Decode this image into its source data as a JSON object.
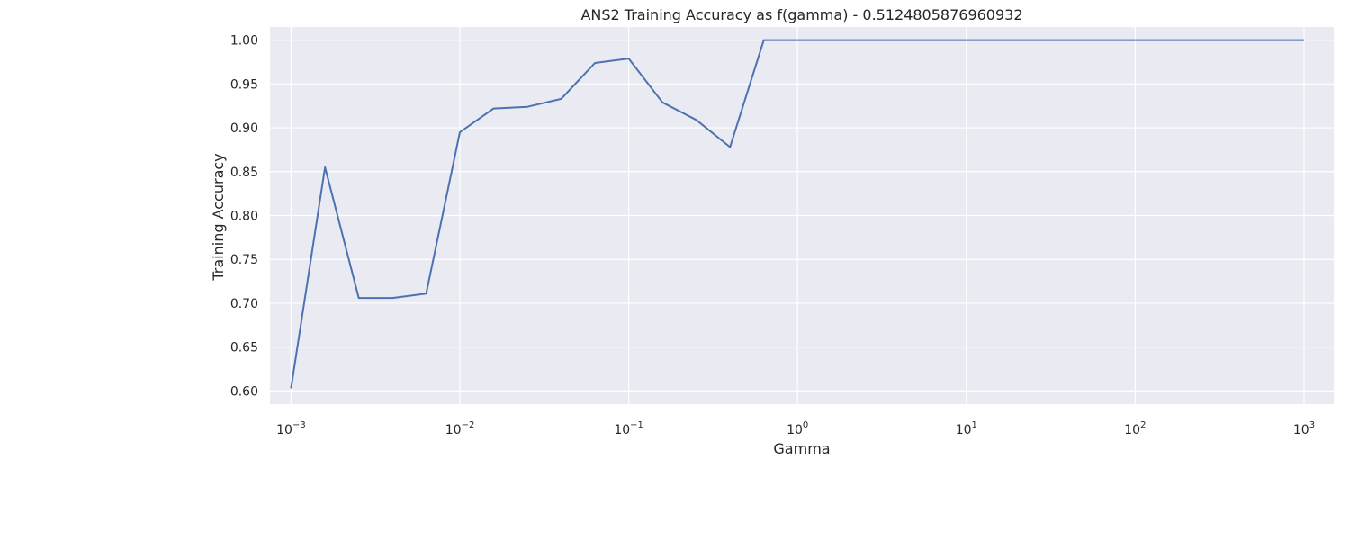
{
  "chart_data": {
    "type": "line",
    "title": "ANS2 Training Accuracy as f(gamma) - 0.5124805876960932",
    "xlabel": "Gamma",
    "ylabel": "Training Accuracy",
    "xscale": "log",
    "xlim": [
      0.00075,
      1500
    ],
    "ylim": [
      0.585,
      1.015
    ],
    "grid": true,
    "background_color": "#eaeaf2",
    "grid_color": "#ffffff",
    "x_ticks": [
      {
        "value": 0.001,
        "base": "10",
        "exp": "−3"
      },
      {
        "value": 0.01,
        "base": "10",
        "exp": "−2"
      },
      {
        "value": 0.1,
        "base": "10",
        "exp": "−1"
      },
      {
        "value": 1,
        "base": "10",
        "exp": "0"
      },
      {
        "value": 10,
        "base": "10",
        "exp": "1"
      },
      {
        "value": 100,
        "base": "10",
        "exp": "2"
      },
      {
        "value": 1000,
        "base": "10",
        "exp": "3"
      }
    ],
    "y_ticks": [
      {
        "value": 0.6,
        "label": "0.60"
      },
      {
        "value": 0.65,
        "label": "0.65"
      },
      {
        "value": 0.7,
        "label": "0.70"
      },
      {
        "value": 0.75,
        "label": "0.75"
      },
      {
        "value": 0.8,
        "label": "0.80"
      },
      {
        "value": 0.85,
        "label": "0.85"
      },
      {
        "value": 0.9,
        "label": "0.90"
      },
      {
        "value": 0.95,
        "label": "0.95"
      },
      {
        "value": 1.0,
        "label": "1.00"
      }
    ],
    "series": [
      {
        "color": "#4c72b0",
        "x": [
          0.001,
          0.00159,
          0.00252,
          0.00399,
          0.00632,
          0.01,
          0.01585,
          0.02512,
          0.03981,
          0.0631,
          0.1,
          0.1585,
          0.2512,
          0.3981,
          0.631,
          1,
          1.585,
          2.512,
          3.981,
          6.31,
          10,
          15.85,
          25.12,
          39.81,
          63.1,
          100,
          158.5,
          251.2,
          398.1,
          631,
          1000
        ],
        "y": [
          0.603,
          0.855,
          0.706,
          0.706,
          0.711,
          0.895,
          0.922,
          0.924,
          0.933,
          0.974,
          0.979,
          0.929,
          0.909,
          0.878,
          1.0,
          1.0,
          1.0,
          1.0,
          1.0,
          1.0,
          1.0,
          1.0,
          1.0,
          1.0,
          1.0,
          1.0,
          1.0,
          1.0,
          1.0,
          1.0,
          1.0
        ]
      }
    ]
  }
}
